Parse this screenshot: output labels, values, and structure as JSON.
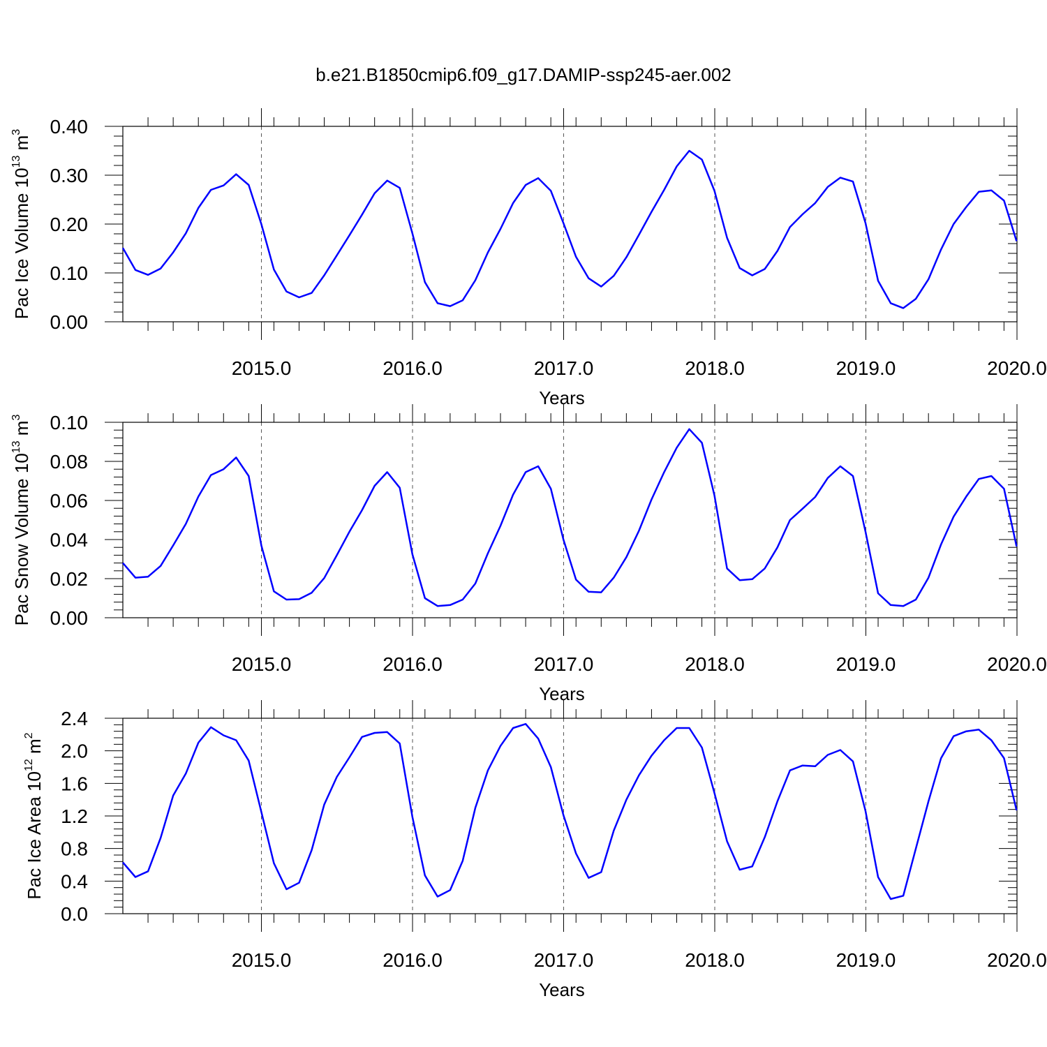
{
  "title": "b.e21.B1850cmip6.f09_g17.DAMIP-ssp245-aer.002",
  "colors": {
    "series": "#0000ff",
    "axis": "#000000"
  },
  "chart_data": [
    {
      "type": "line",
      "ylabel": {
        "base": "Pac Ice Volume 10",
        "exp": "13",
        "unit": " m",
        "unit_exp": "3"
      },
      "xlabel": "Years",
      "xlim": [
        2014.083,
        2020.0
      ],
      "ylim": [
        0.0,
        0.4
      ],
      "yticks": [
        0.0,
        0.1,
        0.2,
        0.3,
        0.4
      ],
      "ytick_labels": [
        "0.00",
        "0.10",
        "0.20",
        "0.30",
        "0.40"
      ],
      "xticks": [
        2015.0,
        2016.0,
        2017.0,
        2018.0,
        2019.0,
        2020.0
      ],
      "xtick_labels": [
        "2015.0",
        "2016.0",
        "2017.0",
        "2018.0",
        "2019.0",
        "2020.0"
      ],
      "grid": "vertical dashed at years",
      "x_start": 2014.083,
      "x_step": 0.0833,
      "values": [
        0.151,
        0.106,
        0.096,
        0.109,
        0.142,
        0.181,
        0.233,
        0.27,
        0.279,
        0.302,
        0.28,
        0.2,
        0.107,
        0.062,
        0.05,
        0.059,
        0.095,
        0.136,
        0.177,
        0.219,
        0.263,
        0.289,
        0.274,
        0.181,
        0.081,
        0.038,
        0.032,
        0.044,
        0.085,
        0.142,
        0.19,
        0.243,
        0.28,
        0.294,
        0.268,
        0.202,
        0.133,
        0.089,
        0.072,
        0.094,
        0.132,
        0.178,
        0.225,
        0.27,
        0.318,
        0.35,
        0.332,
        0.268,
        0.172,
        0.11,
        0.095,
        0.108,
        0.145,
        0.194,
        0.22,
        0.243,
        0.276,
        0.295,
        0.287,
        0.202,
        0.084,
        0.038,
        0.028,
        0.047,
        0.087,
        0.148,
        0.2,
        0.235,
        0.266,
        0.269,
        0.248,
        0.165
      ]
    },
    {
      "type": "line",
      "ylabel": {
        "base": "Pac Snow Volume 10",
        "exp": "13",
        "unit": " m",
        "unit_exp": "3"
      },
      "xlabel": "Years",
      "xlim": [
        2014.083,
        2020.0
      ],
      "ylim": [
        0.0,
        0.1
      ],
      "yticks": [
        0.0,
        0.02,
        0.04,
        0.06,
        0.08,
        0.1
      ],
      "ytick_labels": [
        "0.00",
        "0.02",
        "0.04",
        "0.06",
        "0.08",
        "0.10"
      ],
      "xticks": [
        2015.0,
        2016.0,
        2017.0,
        2018.0,
        2019.0,
        2020.0
      ],
      "xtick_labels": [
        "2015.0",
        "2016.0",
        "2017.0",
        "2018.0",
        "2019.0",
        "2020.0"
      ],
      "grid": "vertical dashed at years",
      "x_start": 2014.083,
      "x_step": 0.0833,
      "values": [
        0.028,
        0.0205,
        0.021,
        0.0265,
        0.037,
        0.048,
        0.062,
        0.073,
        0.076,
        0.082,
        0.0725,
        0.037,
        0.0135,
        0.0093,
        0.0095,
        0.0128,
        0.0203,
        0.032,
        0.044,
        0.055,
        0.0675,
        0.0745,
        0.0665,
        0.0325,
        0.01,
        0.006,
        0.0065,
        0.0093,
        0.0175,
        0.033,
        0.047,
        0.063,
        0.0745,
        0.0775,
        0.066,
        0.04,
        0.0195,
        0.0133,
        0.013,
        0.0205,
        0.031,
        0.0445,
        0.0605,
        0.0745,
        0.087,
        0.0965,
        0.0895,
        0.0625,
        0.0252,
        0.0192,
        0.0197,
        0.0252,
        0.036,
        0.05,
        0.0558,
        0.0618,
        0.0715,
        0.0775,
        0.0725,
        0.044,
        0.0125,
        0.0065,
        0.006,
        0.0093,
        0.0205,
        0.0375,
        0.0517,
        0.062,
        0.071,
        0.0725,
        0.066,
        0.0365
      ]
    },
    {
      "type": "line",
      "ylabel": {
        "base": "Pac Ice Area 10",
        "exp": "12",
        "unit": " m",
        "unit_exp": "2"
      },
      "xlabel": "Years",
      "xlim": [
        2014.083,
        2020.0
      ],
      "ylim": [
        0.0,
        2.4
      ],
      "yticks": [
        0.0,
        0.4,
        0.8,
        1.2,
        1.6,
        2.0,
        2.4
      ],
      "ytick_labels": [
        "0.0",
        "0.4",
        "0.8",
        "1.2",
        "1.6",
        "2.0",
        "2.4"
      ],
      "xticks": [
        2015.0,
        2016.0,
        2017.0,
        2018.0,
        2019.0,
        2020.0
      ],
      "xtick_labels": [
        "2015.0",
        "2016.0",
        "2017.0",
        "2018.0",
        "2019.0",
        "2020.0"
      ],
      "grid": "vertical dashed at years",
      "x_start": 2014.083,
      "x_step": 0.0833,
      "values": [
        0.63,
        0.45,
        0.52,
        0.93,
        1.45,
        1.72,
        2.1,
        2.29,
        2.19,
        2.13,
        1.88,
        1.25,
        0.62,
        0.3,
        0.38,
        0.78,
        1.34,
        1.68,
        1.92,
        2.17,
        2.22,
        2.23,
        2.09,
        1.19,
        0.47,
        0.21,
        0.29,
        0.65,
        1.3,
        1.76,
        2.06,
        2.28,
        2.33,
        2.15,
        1.8,
        1.21,
        0.74,
        0.44,
        0.51,
        1.02,
        1.4,
        1.7,
        1.94,
        2.13,
        2.28,
        2.28,
        2.04,
        1.48,
        0.89,
        0.54,
        0.58,
        0.94,
        1.38,
        1.76,
        1.82,
        1.81,
        1.95,
        2.01,
        1.87,
        1.26,
        0.45,
        0.18,
        0.22,
        0.8,
        1.38,
        1.91,
        2.18,
        2.24,
        2.26,
        2.13,
        1.91,
        1.27
      ]
    }
  ]
}
